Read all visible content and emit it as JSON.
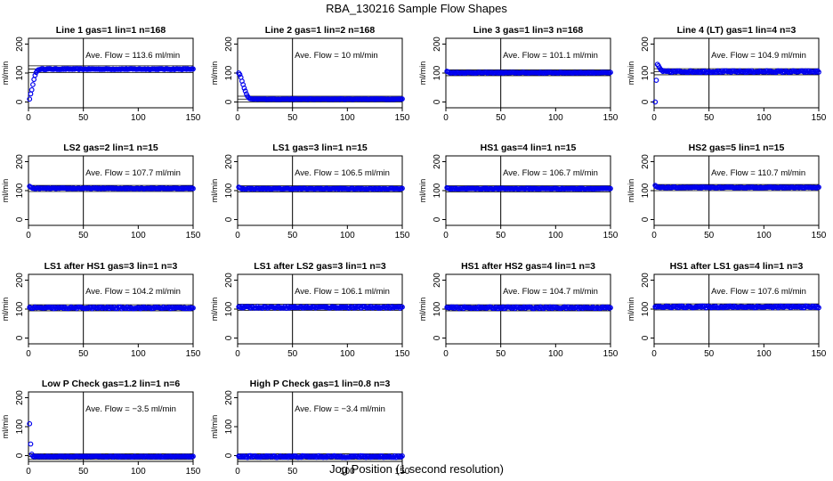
{
  "page": {
    "title": "RBA_130216  Sample Flow Shapes",
    "xlabel": "Jog Position (1 second resolution)"
  },
  "chart_data": [
    {
      "type": "scatter",
      "title": "Line 1 gas=1 lin=1 n=168",
      "ylabel": "ml/min",
      "annotation": "Ave. Flow =  113.6  ml/min",
      "shape": "ramp",
      "start": [
        10,
        28,
        42,
        60,
        78,
        92,
        102,
        108,
        111,
        112
      ],
      "level": 113.6,
      "noise": 1.5,
      "hlines": [
        113.6,
        125,
        102
      ],
      "vline": 50,
      "xlim": [
        0,
        150
      ],
      "ylim": [
        -20,
        220
      ],
      "xticks": [
        0,
        50,
        100,
        150
      ],
      "yticks": [
        0,
        100,
        200
      ]
    },
    {
      "type": "scatter",
      "title": "Line 2 gas=1 lin=2 n=168",
      "ylabel": "ml/min",
      "annotation": "Ave. Flow =  10  ml/min",
      "shape": "decay",
      "start": [
        100,
        95,
        85,
        72,
        60,
        48,
        38,
        28,
        20,
        15,
        12,
        11
      ],
      "level": 10,
      "noise": 1,
      "hlines": [
        10,
        20,
        0
      ],
      "vline": 50,
      "xlim": [
        0,
        150
      ],
      "ylim": [
        -20,
        220
      ],
      "xticks": [
        0,
        50,
        100,
        150
      ],
      "yticks": [
        0,
        100,
        200
      ]
    },
    {
      "type": "scatter",
      "title": "Line 3 gas=1 lin=3 n=168",
      "ylabel": "ml/min",
      "annotation": "Ave. Flow =  101.1  ml/min",
      "shape": "flat",
      "start": [
        106,
        104,
        103
      ],
      "level": 101.1,
      "noise": 1.5,
      "hlines": [
        101.1,
        111,
        91
      ],
      "vline": 50,
      "xlim": [
        0,
        150
      ],
      "ylim": [
        -20,
        220
      ],
      "xticks": [
        0,
        50,
        100,
        150
      ],
      "yticks": [
        0,
        100,
        200
      ]
    },
    {
      "type": "scatter",
      "title": "Line 4 (LT) gas=1 lin=4 n=3",
      "ylabel": "ml/min",
      "annotation": "Ave. Flow =  104.9  ml/min",
      "shape": "flat",
      "start": [
        0,
        75,
        130,
        125,
        118,
        112,
        110
      ],
      "level": 104.9,
      "noise": 3,
      "hlines": [
        104.9,
        115,
        94
      ],
      "vline": 50,
      "xlim": [
        0,
        150
      ],
      "ylim": [
        -20,
        220
      ],
      "xticks": [
        0,
        50,
        100,
        150
      ],
      "yticks": [
        0,
        100,
        200
      ]
    },
    {
      "type": "scatter",
      "title": "LS2 gas=2 lin=1 n=15",
      "ylabel": "ml/min",
      "annotation": "Ave. Flow =  107.7  ml/min",
      "shape": "flat",
      "start": [
        115,
        112,
        110
      ],
      "level": 107.7,
      "noise": 1.5,
      "hlines": [
        107.7,
        118,
        97
      ],
      "vline": 50,
      "xlim": [
        0,
        150
      ],
      "ylim": [
        -20,
        220
      ],
      "xticks": [
        0,
        50,
        100,
        150
      ],
      "yticks": [
        0,
        100,
        200
      ]
    },
    {
      "type": "scatter",
      "title": "LS1 gas=3 lin=1 n=15",
      "ylabel": "ml/min",
      "annotation": "Ave. Flow =  106.5  ml/min",
      "shape": "flat",
      "start": [
        112,
        110,
        108
      ],
      "level": 106.5,
      "noise": 1.5,
      "hlines": [
        106.5,
        117,
        96
      ],
      "vline": 50,
      "xlim": [
        0,
        150
      ],
      "ylim": [
        -20,
        220
      ],
      "xticks": [
        0,
        50,
        100,
        150
      ],
      "yticks": [
        0,
        100,
        200
      ]
    },
    {
      "type": "scatter",
      "title": "HS1 gas=4 lin=1 n=15",
      "ylabel": "ml/min",
      "annotation": "Ave. Flow =  106.7  ml/min",
      "shape": "flat",
      "start": [
        110,
        108,
        107
      ],
      "level": 106.7,
      "noise": 1.5,
      "hlines": [
        106.7,
        117,
        96
      ],
      "vline": 50,
      "xlim": [
        0,
        150
      ],
      "ylim": [
        -20,
        220
      ],
      "xticks": [
        0,
        50,
        100,
        150
      ],
      "yticks": [
        0,
        100,
        200
      ]
    },
    {
      "type": "scatter",
      "title": "HS2 gas=5 lin=1 n=15",
      "ylabel": "ml/min",
      "annotation": "Ave. Flow =  110.7  ml/min",
      "shape": "flat",
      "start": [
        118,
        114,
        112
      ],
      "level": 110.7,
      "noise": 1.5,
      "hlines": [
        110.7,
        121,
        100
      ],
      "vline": 50,
      "xlim": [
        0,
        150
      ],
      "ylim": [
        -20,
        220
      ],
      "xticks": [
        0,
        50,
        100,
        150
      ],
      "yticks": [
        0,
        100,
        200
      ]
    },
    {
      "type": "scatter",
      "title": "LS1 after HS1 gas=3 lin=1 n=3",
      "ylabel": "ml/min",
      "annotation": "Ave. Flow =  104.2  ml/min",
      "shape": "flat",
      "start": [
        106,
        104
      ],
      "level": 104.2,
      "noise": 3,
      "hlines": [
        104.2,
        115,
        94
      ],
      "vline": 50,
      "xlim": [
        0,
        150
      ],
      "ylim": [
        -20,
        220
      ],
      "xticks": [
        0,
        50,
        100,
        150
      ],
      "yticks": [
        0,
        100,
        200
      ]
    },
    {
      "type": "scatter",
      "title": "LS1 after LS2 gas=3 lin=1 n=3",
      "ylabel": "ml/min",
      "annotation": "Ave. Flow =  106.1  ml/min",
      "shape": "flat",
      "start": [
        108,
        107
      ],
      "level": 106.1,
      "noise": 3,
      "hlines": [
        106.1,
        117,
        96
      ],
      "vline": 50,
      "xlim": [
        0,
        150
      ],
      "ylim": [
        -20,
        220
      ],
      "xticks": [
        0,
        50,
        100,
        150
      ],
      "yticks": [
        0,
        100,
        200
      ]
    },
    {
      "type": "scatter",
      "title": "HS1 after HS2 gas=4 lin=1 n=3",
      "ylabel": "ml/min",
      "annotation": "Ave. Flow =  104.7  ml/min",
      "shape": "flat",
      "start": [
        106,
        105
      ],
      "level": 104.7,
      "noise": 3,
      "hlines": [
        104.7,
        115,
        94
      ],
      "vline": 50,
      "xlim": [
        0,
        150
      ],
      "ylim": [
        -20,
        220
      ],
      "xticks": [
        0,
        50,
        100,
        150
      ],
      "yticks": [
        0,
        100,
        200
      ]
    },
    {
      "type": "scatter",
      "title": "HS1 after LS1 gas=4 lin=1 n=3",
      "ylabel": "ml/min",
      "annotation": "Ave. Flow =  107.6  ml/min",
      "shape": "flat",
      "start": [
        108,
        107
      ],
      "level": 107.6,
      "noise": 3,
      "hlines": [
        107.6,
        118,
        97
      ],
      "vline": 50,
      "xlim": [
        0,
        150
      ],
      "ylim": [
        -20,
        220
      ],
      "xticks": [
        0,
        50,
        100,
        150
      ],
      "yticks": [
        0,
        100,
        200
      ]
    },
    {
      "type": "scatter",
      "title": "Low P Check gas=1.2 lin=1 n=6",
      "ylabel": "ml/min",
      "annotation": "Ave. Flow =  −3.5  ml/min",
      "shape": "flat",
      "start": [
        110,
        40,
        5,
        -2
      ],
      "level": -3.5,
      "noise": 1.5,
      "hlines": [
        -3.5,
        6,
        -13
      ],
      "vline": 50,
      "xlim": [
        0,
        150
      ],
      "ylim": [
        -20,
        220
      ],
      "xticks": [
        0,
        50,
        100,
        150
      ],
      "yticks": [
        0,
        100,
        200
      ]
    },
    {
      "type": "scatter",
      "title": "High P Check gas=1 lin=0.8 n=3",
      "ylabel": "ml/min",
      "annotation": "Ave. Flow =  −3.4  ml/min",
      "shape": "flat",
      "start": [
        -2,
        -3
      ],
      "level": -3.4,
      "noise": 3,
      "hlines": [
        -3.4,
        6,
        -13
      ],
      "vline": 50,
      "xlim": [
        0,
        150
      ],
      "ylim": [
        -20,
        220
      ],
      "xticks": [
        0,
        50,
        100,
        150
      ],
      "yticks": [
        0,
        100,
        200
      ]
    }
  ],
  "colors": {
    "points": "#0000ee",
    "axes": "#000000",
    "background": "#ffffff"
  }
}
